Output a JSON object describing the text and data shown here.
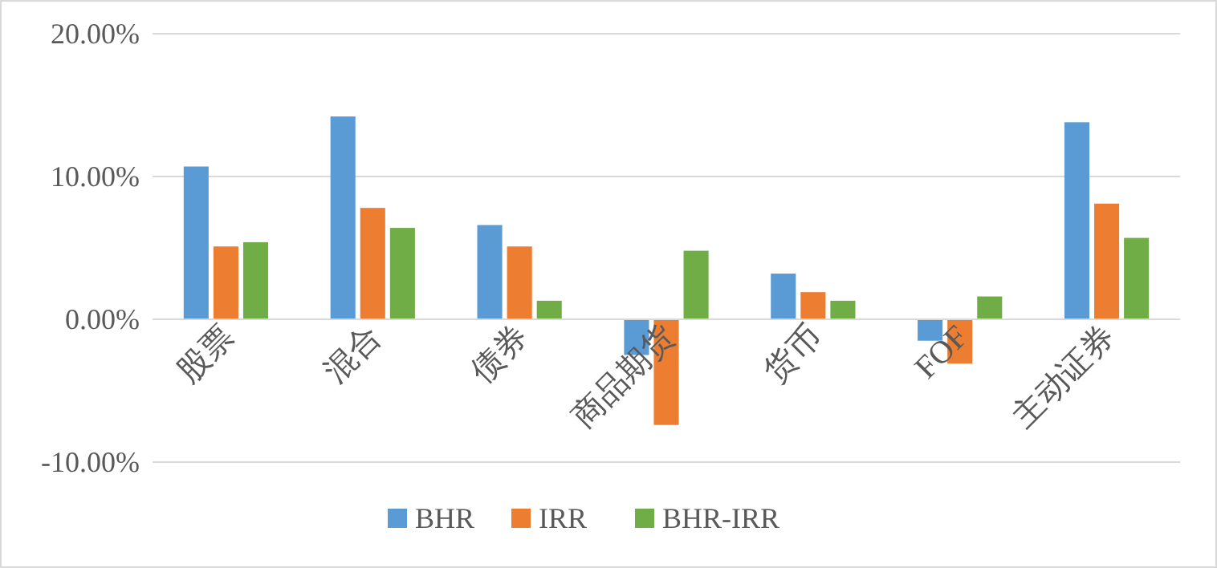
{
  "chart_data": {
    "type": "bar",
    "categories": [
      "股票",
      "混合",
      "债券",
      "商品期货",
      "货币",
      "FOF",
      "主动证券"
    ],
    "series": [
      {
        "name": "BHR",
        "color": "#5b9bd5",
        "values": [
          10.7,
          14.2,
          6.6,
          -2.5,
          3.2,
          -1.5,
          13.8
        ]
      },
      {
        "name": "IRR",
        "color": "#ed7d31",
        "values": [
          5.1,
          7.8,
          5.1,
          -7.4,
          1.9,
          -3.1,
          8.1
        ]
      },
      {
        "name": "BHR-IRR",
        "color": "#70ad47",
        "values": [
          5.4,
          6.4,
          1.3,
          4.8,
          1.3,
          1.6,
          5.7
        ]
      }
    ],
    "ylim": [
      -10,
      20
    ],
    "yticks": [
      {
        "value": -10,
        "label": "-10.00%"
      },
      {
        "value": 0,
        "label": "0.00%"
      },
      {
        "value": 10,
        "label": "10.00%"
      },
      {
        "value": 20,
        "label": "20.00%"
      }
    ],
    "grid": "y",
    "legend": "bottom"
  }
}
